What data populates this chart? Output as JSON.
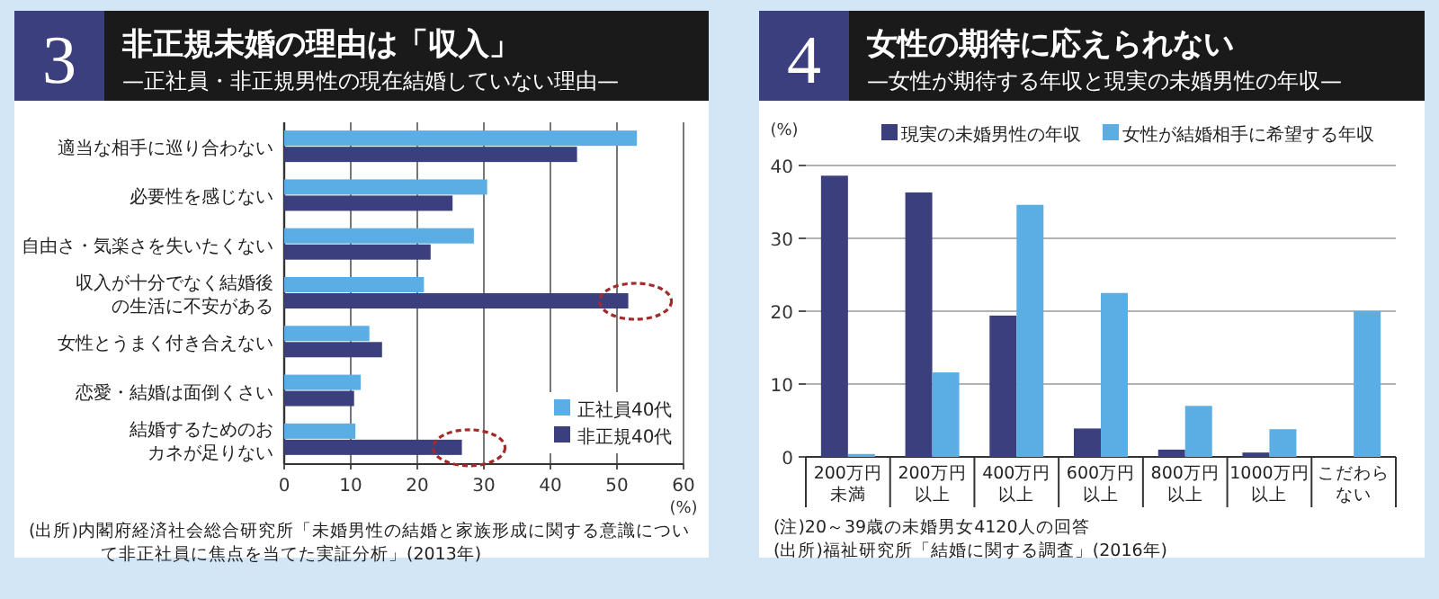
{
  "chart_data": [
    {
      "type": "bar",
      "orientation": "horizontal",
      "title": "非正規未婚の理由は「収入」",
      "subtitle": "—正社員・非正規男性の現在結婚していない理由—",
      "categories": [
        "適当な相手に巡り合わない",
        "必要性を感じない",
        "自由さ・気楽さを失いたくない",
        "収入が十分でなく結婚後の生活に不安がある",
        "女性とうまく付き合えない",
        "恋愛・結婚は面倒くさい",
        "結婚するためのおカネが足りない"
      ],
      "series": [
        {
          "name": "正社員40代",
          "color": "#5aaee3",
          "values": [
            53,
            30.5,
            28.5,
            21,
            12.8,
            11.5,
            10.7
          ]
        },
        {
          "name": "非正規40代",
          "color": "#3c3f7e",
          "values": [
            44,
            25.3,
            22,
            51.7,
            14.7,
            10.5,
            26.7
          ]
        }
      ],
      "xlim": [
        0,
        60
      ],
      "xticks": [
        0,
        10,
        20,
        30,
        40,
        50,
        60
      ],
      "xlabel": "(%)",
      "grid": "x",
      "legend": "bottom right",
      "annotations": [
        "3",
        "(出所)内閣府経済社会総合研究所「未婚男性の結婚と家族形成に関する意識について非正社員に焦点を当てた実証分析」(2013年)"
      ]
    },
    {
      "type": "bar",
      "title": "女性の期待に応えられない",
      "subtitle": "—女性が期待する年収と現実の未婚男性の年収—",
      "categories": [
        "200万円未満",
        "200万円以上",
        "400万円以上",
        "600万円以上",
        "800万円以上",
        "1000万円以上",
        "こだわらない"
      ],
      "series": [
        {
          "name": "現実の未婚男性の年収",
          "color": "#3c3f7e",
          "values": [
            38.6,
            36.3,
            19.4,
            3.9,
            1,
            0.6,
            null
          ]
        },
        {
          "name": "女性が結婚相手に希望する年収",
          "color": "#5aaee3",
          "values": [
            0.4,
            11.6,
            34.6,
            22.5,
            7,
            3.8,
            20
          ]
        }
      ],
      "ylim": [
        0,
        40
      ],
      "yticks": [
        0,
        10,
        20,
        30,
        40
      ],
      "ylabel": "(%)",
      "grid": "y",
      "legend": "top",
      "annotations": [
        "4",
        "(注)20～39歳の未婚男女4120人の回答",
        "(出所)福祉研究所「結婚に関する調査」(2016年)"
      ]
    }
  ]
}
